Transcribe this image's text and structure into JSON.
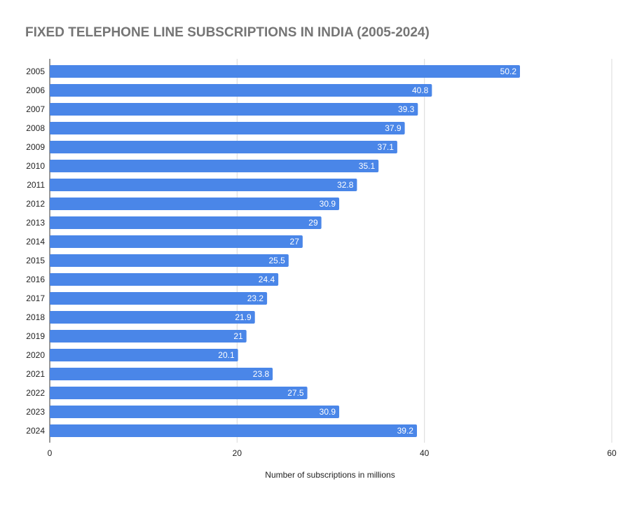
{
  "chart_data": {
    "type": "bar",
    "orientation": "horizontal",
    "title": "FIXED TELEPHONE LINE SUBSCRIPTIONS IN INDIA (2005-2024)",
    "xlabel": "Number of subscriptions in millions",
    "ylabel": "",
    "xlim": [
      0,
      60
    ],
    "xticks": [
      "0",
      "20",
      "40",
      "60"
    ],
    "grid": true,
    "legend": "none",
    "categories": [
      "2005",
      "2006",
      "2007",
      "2008",
      "2009",
      "2010",
      "2011",
      "2012",
      "2013",
      "2014",
      "2015",
      "2016",
      "2017",
      "2018",
      "2019",
      "2020",
      "2021",
      "2022",
      "2023",
      "2024"
    ],
    "values": [
      50.2,
      40.8,
      39.3,
      37.9,
      37.1,
      35.1,
      32.8,
      30.9,
      29,
      27,
      25.5,
      24.4,
      23.2,
      21.9,
      21,
      20.1,
      23.8,
      27.5,
      30.9,
      39.2
    ],
    "data_labels": [
      "50.2",
      "40.8",
      "39.3",
      "37.9",
      "37.1",
      "35.1",
      "32.8",
      "30.9",
      "29",
      "27",
      "25.5",
      "24.4",
      "23.2",
      "21.9",
      "21",
      "20.1",
      "23.8",
      "27.5",
      "30.9",
      "39.2"
    ],
    "colors": {
      "bar": "#4a86e8",
      "gridline": "#d9d9d9",
      "title": "#757575"
    }
  }
}
